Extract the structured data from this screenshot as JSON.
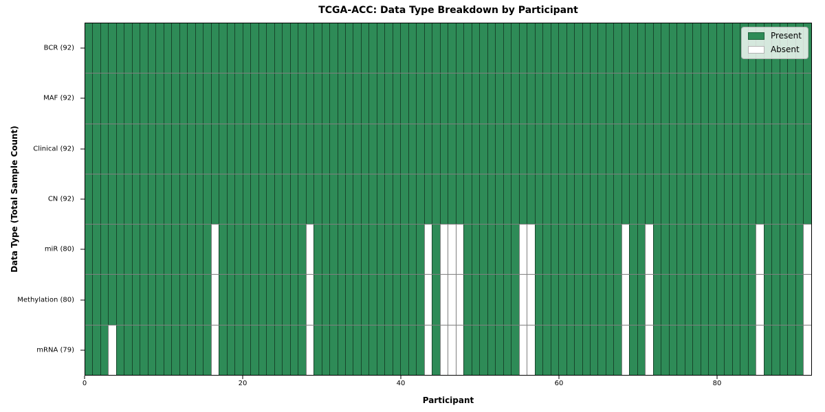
{
  "chart_data": {
    "type": "heatmap",
    "title": "TCGA-ACC: Data Type Breakdown by Participant",
    "xlabel": "Participant",
    "ylabel": "Data Type (Total Sample Count)",
    "n_participants": 92,
    "x_range": [
      0,
      92
    ],
    "x_ticks": [
      "0",
      "20",
      "40",
      "60",
      "80"
    ],
    "x_tick_values": [
      0,
      20,
      40,
      60,
      80
    ],
    "rows": [
      {
        "label": "BCR (92)",
        "data_type": "BCR",
        "present_count": 92,
        "absent_participants": []
      },
      {
        "label": "MAF (92)",
        "data_type": "MAF",
        "present_count": 92,
        "absent_participants": []
      },
      {
        "label": "Clinical (92)",
        "data_type": "Clinical",
        "present_count": 92,
        "absent_participants": []
      },
      {
        "label": "CN (92)",
        "data_type": "CN",
        "present_count": 92,
        "absent_participants": []
      },
      {
        "label": "miR (80)",
        "data_type": "miR",
        "present_count": 80,
        "absent_participants": [
          16,
          28,
          43,
          45,
          46,
          47,
          55,
          56,
          68,
          71,
          85,
          91
        ]
      },
      {
        "label": "Methylation (80)",
        "data_type": "Methylation",
        "present_count": 80,
        "absent_participants": [
          16,
          28,
          43,
          45,
          46,
          47,
          55,
          56,
          68,
          71,
          85,
          91
        ]
      },
      {
        "label": "mRNA (79)",
        "data_type": "mRNA",
        "present_count": 79,
        "absent_participants": [
          3,
          16,
          28,
          43,
          45,
          46,
          47,
          55,
          56,
          68,
          71,
          85,
          91
        ]
      }
    ],
    "legend": {
      "position": "upper-right",
      "entries": [
        {
          "label": "Present",
          "color": "#2e8b57"
        },
        {
          "label": "Absent",
          "color": "#ffffff"
        }
      ]
    },
    "colors": {
      "present": "#2e8b57",
      "absent": "#ffffff"
    },
    "grid": true
  }
}
